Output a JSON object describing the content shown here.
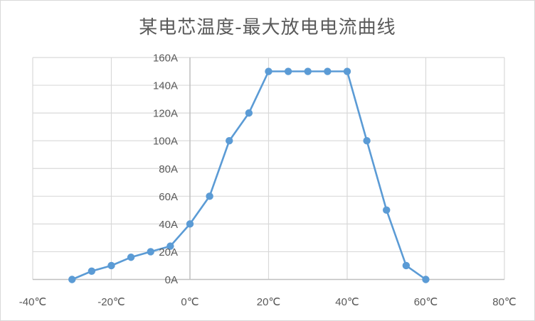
{
  "chart_data": {
    "type": "line",
    "title": "某电芯温度-最大放电电流曲线",
    "xlabel": "",
    "ylabel": "",
    "x_tick_labels": [
      "-40℃",
      "-20℃",
      "0℃",
      "20℃",
      "40℃",
      "60℃",
      "80℃"
    ],
    "y_tick_labels": [
      "0A",
      "20A",
      "40A",
      "60A",
      "80A",
      "100A",
      "120A",
      "140A",
      "160A"
    ],
    "xlim": [
      -40,
      80
    ],
    "ylim": [
      0,
      160
    ],
    "x_ticks": [
      -40,
      -20,
      0,
      20,
      40,
      60,
      80
    ],
    "y_ticks": [
      0,
      20,
      40,
      60,
      80,
      100,
      120,
      140,
      160
    ],
    "grid": true,
    "legend": "none",
    "y_axis_position": "x=0",
    "series": [
      {
        "name": "最大放电电流",
        "color": "#5B9BD5",
        "marker": "circle",
        "x": [
          -30,
          -25,
          -20,
          -15,
          -10,
          -5,
          0,
          5,
          10,
          15,
          20,
          25,
          30,
          35,
          40,
          45,
          50,
          55,
          60
        ],
        "values": [
          0,
          6,
          10,
          16,
          20,
          24,
          40,
          60,
          100,
          120,
          150,
          150,
          150,
          150,
          150,
          100,
          50,
          10,
          0
        ]
      }
    ]
  },
  "colors": {
    "line": "#5B9BD5",
    "grid": "#d9d9d9",
    "axis": "#bfbfbf",
    "text": "#595959",
    "border": "#d9d9d9"
  }
}
